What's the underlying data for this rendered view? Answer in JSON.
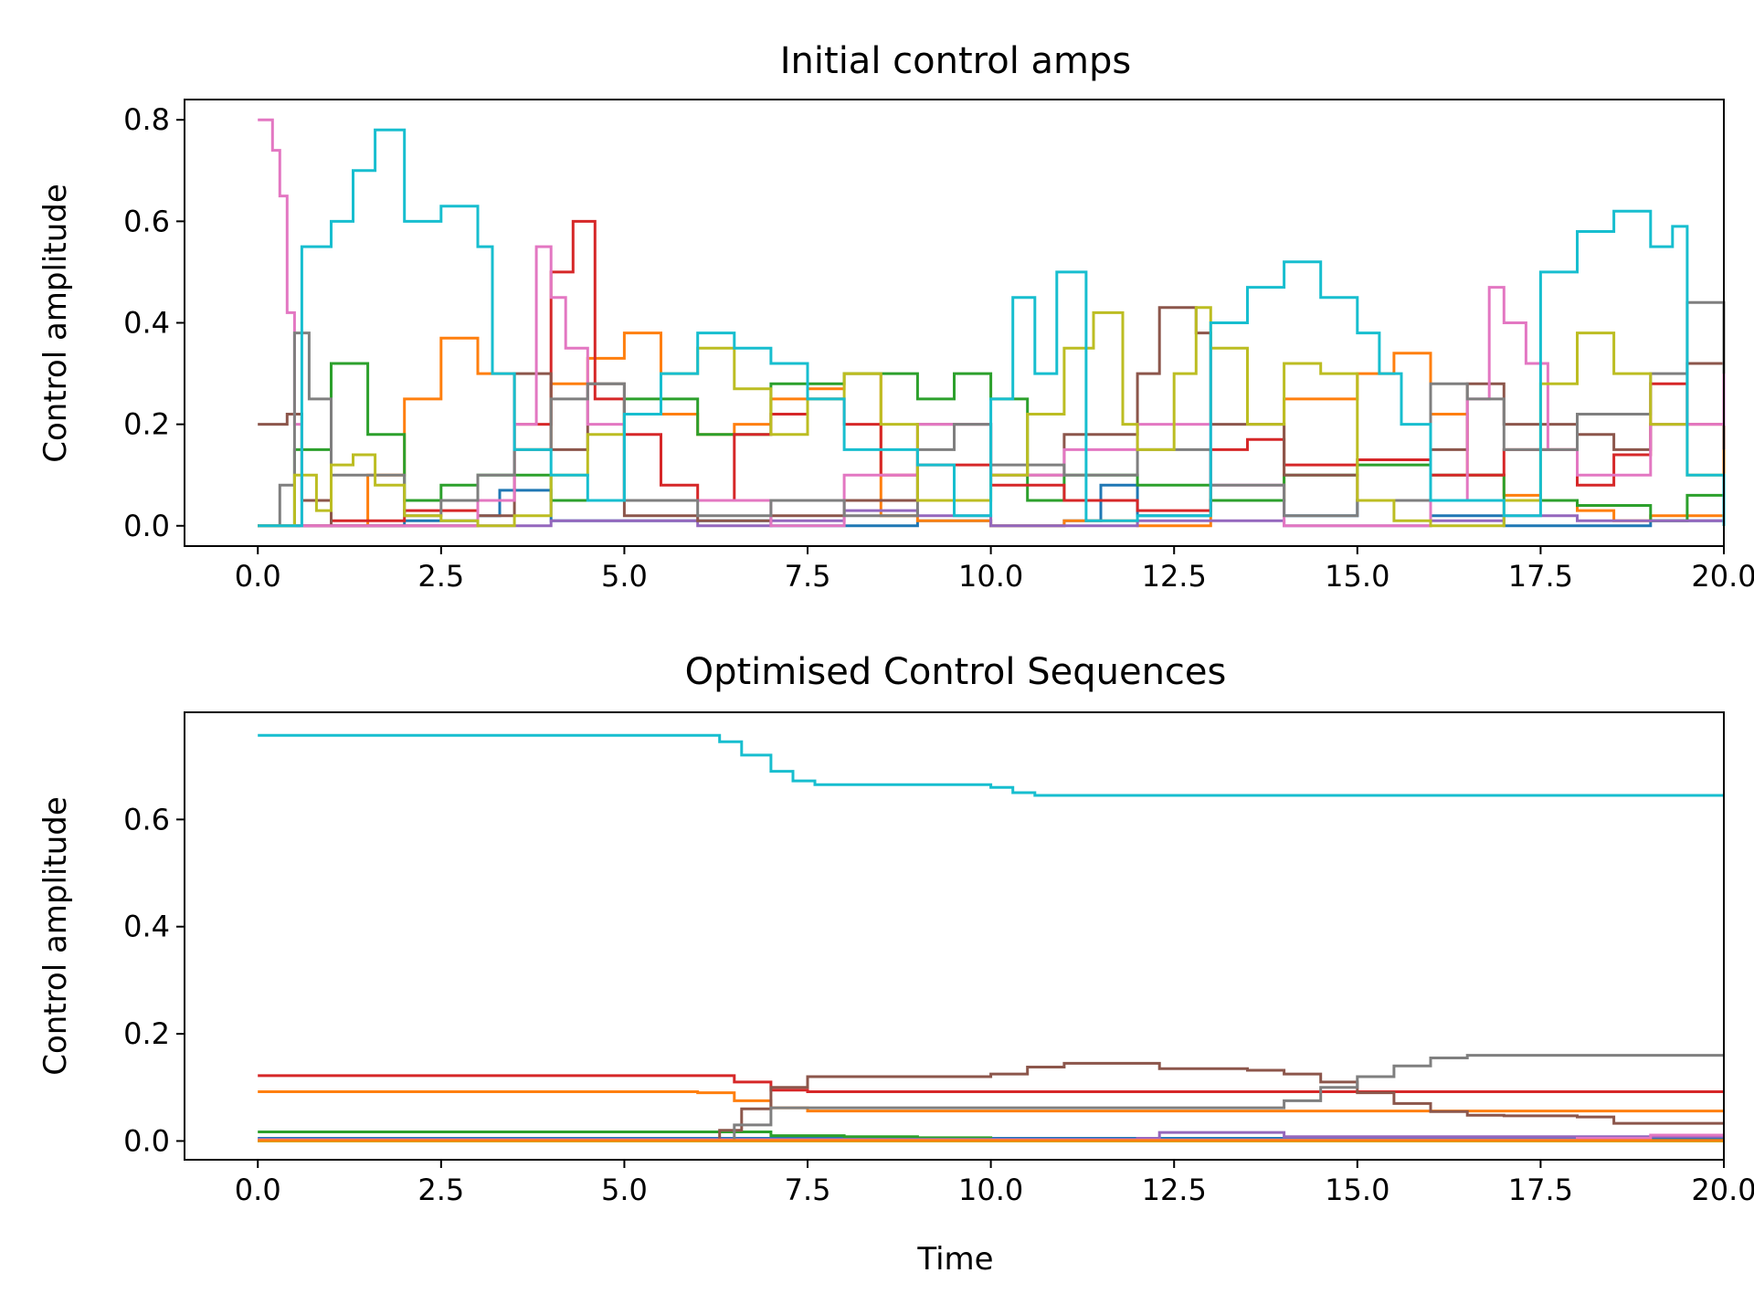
{
  "chart_data": [
    {
      "type": "line",
      "step": true,
      "title": "Initial control amps",
      "xlabel": "",
      "ylabel": "Control amplitude",
      "xlim": [
        -1,
        20.0
      ],
      "ylim": [
        -0.04,
        0.84
      ],
      "xticks": [
        0.0,
        2.5,
        5.0,
        7.5,
        10.0,
        12.5,
        15.0,
        17.5,
        20.0
      ],
      "xtick_labels": [
        "0.0",
        "2.5",
        "5.0",
        "7.5",
        "10.0",
        "12.5",
        "15.0",
        "17.5",
        "20.0"
      ],
      "yticks": [
        0.0,
        0.2,
        0.4,
        0.6,
        0.8
      ],
      "ytick_labels": [
        "0.0",
        "0.2",
        "0.4",
        "0.6",
        "0.8"
      ],
      "series": [
        {
          "color": "#1f77b4",
          "x": [
            0,
            1,
            2,
            3,
            3.3,
            4,
            5,
            6,
            7,
            8,
            9,
            10,
            11,
            11.5,
            12,
            13,
            14,
            15,
            16,
            17,
            18,
            19,
            20
          ],
          "y": [
            0,
            0,
            0.01,
            0.02,
            0.07,
            0.01,
            0.01,
            0.01,
            0,
            0,
            0.01,
            0,
            0.01,
            0.08,
            0.02,
            0.05,
            0.02,
            0.05,
            0.02,
            0,
            0,
            0.01,
            0
          ]
        },
        {
          "color": "#ff7f0e",
          "x": [
            0,
            1,
            1.5,
            2,
            2.5,
            3,
            3.5,
            4,
            4.5,
            5,
            5.5,
            6,
            6.5,
            7,
            7.5,
            8,
            8.5,
            9,
            10,
            11,
            12,
            13,
            14,
            15,
            15.5,
            16,
            16.5,
            17,
            17.5,
            18,
            18.5,
            19,
            20
          ],
          "y": [
            0,
            0,
            0.1,
            0.25,
            0.37,
            0.3,
            0.15,
            0.28,
            0.33,
            0.38,
            0.22,
            0.18,
            0.2,
            0.25,
            0.27,
            0.3,
            0.02,
            0.01,
            0,
            0.01,
            0,
            0.05,
            0.25,
            0.3,
            0.34,
            0.22,
            0.1,
            0.06,
            0.05,
            0.03,
            0.01,
            0.02,
            0.26
          ]
        },
        {
          "color": "#2ca02c",
          "x": [
            0,
            0.5,
            1,
            1.5,
            2,
            2.5,
            3,
            4,
            5,
            6,
            7,
            8,
            9,
            9.5,
            10,
            10.5,
            11,
            12,
            13,
            14,
            15,
            16,
            17,
            18,
            19,
            19.5,
            20
          ],
          "y": [
            0,
            0.15,
            0.32,
            0.18,
            0.05,
            0.08,
            0.1,
            0.05,
            0.25,
            0.18,
            0.28,
            0.3,
            0.25,
            0.3,
            0.25,
            0.05,
            0.1,
            0.08,
            0.05,
            0.1,
            0.12,
            0.1,
            0.05,
            0.04,
            0.01,
            0.06,
            0
          ]
        },
        {
          "color": "#d62728",
          "x": [
            0,
            1,
            2,
            3,
            3.5,
            4,
            4.3,
            4.6,
            5,
            5.5,
            6,
            6.5,
            7,
            7.5,
            8,
            8.5,
            9,
            10,
            11,
            12,
            13,
            13.5,
            14,
            15,
            16,
            17,
            18,
            18.5,
            19,
            19.5,
            20
          ],
          "y": [
            0,
            0.01,
            0.03,
            0.05,
            0.2,
            0.5,
            0.6,
            0.25,
            0.18,
            0.08,
            0.05,
            0.18,
            0.22,
            0.25,
            0.2,
            0.1,
            0.12,
            0.08,
            0.05,
            0.03,
            0.15,
            0.17,
            0.12,
            0.13,
            0.1,
            0.15,
            0.08,
            0.14,
            0.28,
            0.2,
            0.15
          ]
        },
        {
          "color": "#9467bd",
          "x": [
            0,
            2,
            4,
            6,
            7,
            8,
            9,
            10,
            12,
            14,
            16,
            17,
            18,
            20
          ],
          "y": [
            0,
            0,
            0.01,
            0,
            0.01,
            0.03,
            0.02,
            0,
            0.01,
            0,
            0.01,
            0.02,
            0.01,
            0
          ]
        },
        {
          "color": "#8c564b",
          "x": [
            0,
            0.4,
            0.6,
            1,
            2,
            3,
            3.5,
            4,
            4.5,
            5,
            6,
            7,
            8,
            9,
            10,
            11,
            12,
            12.3,
            12.8,
            13,
            14,
            15,
            16,
            16.5,
            17,
            18,
            18.5,
            19,
            19.5,
            20
          ],
          "y": [
            0.2,
            0.22,
            0.05,
            0,
            0,
            0.02,
            0.3,
            0.15,
            0.28,
            0.02,
            0.01,
            0.02,
            0.05,
            0.2,
            0.1,
            0.18,
            0.3,
            0.43,
            0.38,
            0.2,
            0.1,
            0.05,
            0.15,
            0.28,
            0.2,
            0.18,
            0.15,
            0.2,
            0.32,
            0.15
          ]
        },
        {
          "color": "#e377c2",
          "x": [
            0,
            0.2,
            0.3,
            0.4,
            0.5,
            0.6,
            1,
            3,
            3.5,
            3.8,
            4,
            4.2,
            4.5,
            5,
            7,
            8,
            9,
            10,
            11,
            12,
            13,
            14,
            15,
            16,
            16.5,
            16.8,
            17,
            17.3,
            17.6,
            18,
            19,
            20
          ],
          "y": [
            0.8,
            0.74,
            0.65,
            0.42,
            0.2,
            0,
            0,
            0.05,
            0.2,
            0.55,
            0.45,
            0.35,
            0.2,
            0.05,
            0,
            0.1,
            0.2,
            0.1,
            0.15,
            0.2,
            0.08,
            0,
            0,
            0.05,
            0.25,
            0.47,
            0.4,
            0.32,
            0.15,
            0.1,
            0.2,
            0.3
          ]
        },
        {
          "color": "#7f7f7f",
          "x": [
            0,
            0.3,
            0.5,
            0.7,
            1,
            2,
            2.5,
            3,
            3.5,
            4,
            4.5,
            5,
            6,
            7,
            8,
            9,
            9.5,
            10,
            11,
            12,
            13,
            14,
            15,
            16,
            16.5,
            17,
            18,
            19,
            19.5,
            20
          ],
          "y": [
            0,
            0.08,
            0.38,
            0.25,
            0.1,
            0.02,
            0.05,
            0.1,
            0.15,
            0.25,
            0.28,
            0.05,
            0.02,
            0.05,
            0.02,
            0.15,
            0.2,
            0.12,
            0.1,
            0.15,
            0.08,
            0.02,
            0.05,
            0.28,
            0.25,
            0.15,
            0.22,
            0.3,
            0.44,
            0.3
          ]
        },
        {
          "color": "#bcbd22",
          "x": [
            0,
            0.5,
            0.8,
            1,
            1.3,
            1.6,
            2,
            2.5,
            3,
            3.5,
            4,
            4.5,
            5,
            5.5,
            6,
            6.5,
            7,
            7.5,
            8,
            8.5,
            9,
            10,
            10.5,
            11,
            11.4,
            11.8,
            12,
            12.5,
            12.8,
            13,
            13.5,
            14,
            14.5,
            15,
            15.5,
            16,
            17,
            17.5,
            18,
            18.5,
            19,
            19.5,
            20
          ],
          "y": [
            0,
            0.1,
            0.03,
            0.12,
            0.14,
            0.08,
            0.02,
            0.01,
            0,
            0.02,
            0.1,
            0.18,
            0.22,
            0.3,
            0.35,
            0.27,
            0.18,
            0.25,
            0.3,
            0.2,
            0.05,
            0.1,
            0.22,
            0.35,
            0.42,
            0.2,
            0.15,
            0.3,
            0.43,
            0.35,
            0.2,
            0.32,
            0.3,
            0.05,
            0.01,
            0,
            0.05,
            0.28,
            0.38,
            0.3,
            0.2,
            0.1,
            0
          ]
        },
        {
          "color": "#17becf",
          "x": [
            0,
            0.5,
            0.6,
            1,
            1.3,
            1.6,
            2,
            2.5,
            3,
            3.2,
            3.5,
            4,
            4.5,
            5,
            5.5,
            6,
            6.5,
            7,
            7.5,
            8,
            9,
            9.5,
            10,
            10.3,
            10.6,
            10.9,
            11.3,
            12,
            13,
            13.5,
            14,
            14.5,
            15,
            15.3,
            15.6,
            16,
            17,
            17.5,
            18,
            18.5,
            19,
            19.3,
            19.5,
            20
          ],
          "y": [
            0,
            0,
            0.55,
            0.6,
            0.7,
            0.78,
            0.6,
            0.63,
            0.55,
            0.3,
            0.15,
            0.1,
            0.05,
            0.22,
            0.3,
            0.38,
            0.35,
            0.32,
            0.25,
            0.15,
            0.12,
            0.02,
            0.25,
            0.45,
            0.3,
            0.5,
            0.01,
            0.02,
            0.4,
            0.47,
            0.52,
            0.45,
            0.38,
            0.3,
            0.2,
            0.05,
            0.02,
            0.5,
            0.58,
            0.62,
            0.55,
            0.59,
            0.1,
            0
          ]
        }
      ]
    },
    {
      "type": "line",
      "step": true,
      "title": "Optimised Control Sequences",
      "xlabel": "Time",
      "ylabel": "Control amplitude",
      "xlim": [
        -1,
        20.0
      ],
      "ylim": [
        -0.035,
        0.8
      ],
      "xticks": [
        0.0,
        2.5,
        5.0,
        7.5,
        10.0,
        12.5,
        15.0,
        17.5,
        20.0
      ],
      "xtick_labels": [
        "0.0",
        "2.5",
        "5.0",
        "7.5",
        "10.0",
        "12.5",
        "15.0",
        "17.5",
        "20.0"
      ],
      "yticks": [
        0.0,
        0.2,
        0.4,
        0.6
      ],
      "ytick_labels": [
        "0.0",
        "0.2",
        "0.4",
        "0.6"
      ],
      "series": [
        {
          "color": "#1f77b4",
          "x": [
            0,
            20
          ],
          "y": [
            0.005,
            0.005
          ]
        },
        {
          "color": "#ff7f0e",
          "x": [
            0,
            4,
            6,
            6.5,
            7,
            7.5,
            10,
            20
          ],
          "y": [
            0.092,
            0.092,
            0.09,
            0.075,
            0.062,
            0.056,
            0.056,
            0.056
          ]
        },
        {
          "color": "#2ca02c",
          "x": [
            0,
            6,
            7,
            8,
            9,
            10,
            11,
            20
          ],
          "y": [
            0.017,
            0.017,
            0.01,
            0.008,
            0.006,
            0.002,
            0.001,
            0.001
          ]
        },
        {
          "color": "#d62728",
          "x": [
            0,
            6,
            6.5,
            7,
            7.5,
            20
          ],
          "y": [
            0.122,
            0.122,
            0.11,
            0.095,
            0.092,
            0.092
          ]
        },
        {
          "color": "#9467bd",
          "x": [
            0,
            11.5,
            12,
            12.3,
            13,
            13.6,
            14,
            20
          ],
          "y": [
            0.003,
            0.003,
            0.005,
            0.016,
            0.016,
            0.016,
            0.008,
            0.008
          ]
        },
        {
          "color": "#8c564b",
          "x": [
            0,
            6,
            6.3,
            6.6,
            7,
            7.5,
            9.5,
            10,
            10.5,
            11,
            12,
            12.3,
            13.5,
            14,
            14.5,
            15,
            15.5,
            16,
            16.5,
            17,
            17.5,
            18,
            18.5,
            20
          ],
          "y": [
            0,
            0,
            0.02,
            0.06,
            0.1,
            0.12,
            0.12,
            0.125,
            0.138,
            0.145,
            0.145,
            0.135,
            0.132,
            0.125,
            0.11,
            0.09,
            0.07,
            0.055,
            0.048,
            0.047,
            0.047,
            0.045,
            0.033,
            0.033
          ]
        },
        {
          "color": "#e377c2",
          "x": [
            0,
            17,
            18,
            19,
            20
          ],
          "y": [
            0.002,
            0.002,
            0.005,
            0.011,
            0.011
          ]
        },
        {
          "color": "#7f7f7f",
          "x": [
            0,
            6.1,
            6.5,
            7,
            7.5,
            13.5,
            14,
            14.5,
            15,
            15.5,
            16,
            16.5,
            20
          ],
          "y": [
            0,
            0,
            0.03,
            0.062,
            0.062,
            0.062,
            0.075,
            0.1,
            0.12,
            0.14,
            0.155,
            0.16,
            0.16
          ]
        },
        {
          "color": "#bcbd22",
          "x": [
            0,
            20
          ],
          "y": [
            0,
            0
          ]
        },
        {
          "color": "#17becf",
          "x": [
            0,
            3,
            5,
            6,
            6.3,
            6.6,
            7,
            7.3,
            7.6,
            9.5,
            10,
            10.3,
            10.6,
            20
          ],
          "y": [
            0.757,
            0.757,
            0.757,
            0.757,
            0.745,
            0.72,
            0.69,
            0.672,
            0.665,
            0.665,
            0.66,
            0.65,
            0.645,
            0.645
          ]
        },
        {
          "color": "#ff7f0e",
          "x": [
            0,
            20
          ],
          "y": [
            0.001,
            0.001
          ]
        }
      ]
    }
  ]
}
